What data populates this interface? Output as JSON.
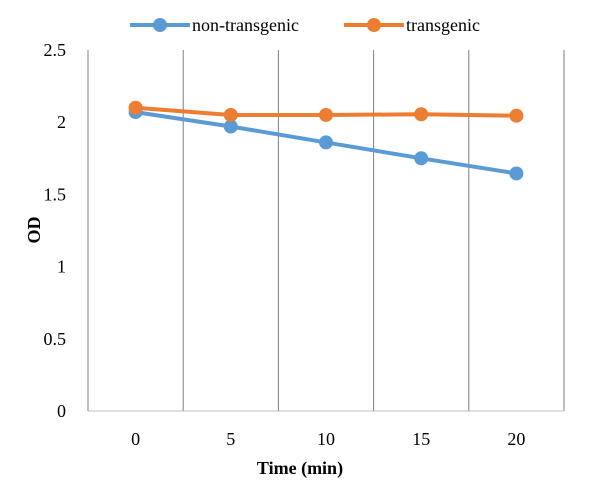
{
  "chart_data": {
    "type": "line",
    "x": [
      "0",
      "5",
      "10",
      "15",
      "20"
    ],
    "series": [
      {
        "name": "non-transgenic",
        "values": [
          2.07,
          1.97,
          1.86,
          1.75,
          1.645
        ],
        "color": "#5B9BD5"
      },
      {
        "name": "transgenic",
        "values": [
          2.1,
          2.05,
          2.05,
          2.055,
          2.045
        ],
        "color": "#ED7D31"
      }
    ],
    "xlabel": "Time (min)",
    "ylabel": "OD",
    "ylim": [
      0,
      2.5
    ],
    "yticks": [
      "0",
      "0.5",
      "1",
      "1.5",
      "2",
      "2.5"
    ],
    "grid": "vertical",
    "legend": "top-center"
  }
}
